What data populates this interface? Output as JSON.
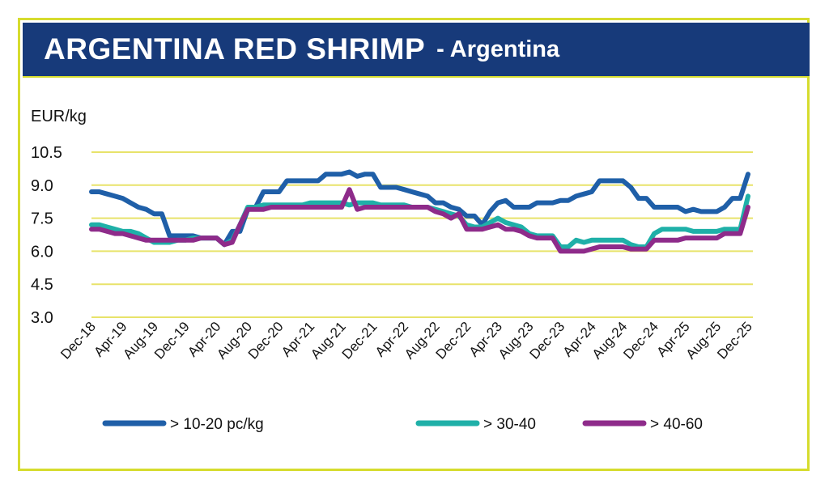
{
  "header": {
    "title": "ARGENTINA RED SHRIMP",
    "subtitle": "- Argentina"
  },
  "chart_data": {
    "type": "line",
    "ylabel": "EUR/kg",
    "ylim": [
      3.0,
      10.5
    ],
    "yticks": [
      "10.5",
      "9.0",
      "7.5",
      "6.0",
      "4.5",
      "3.0"
    ],
    "ytick_values": [
      10.5,
      9.0,
      7.5,
      6.0,
      4.5,
      3.0
    ],
    "grid": true,
    "legend_position": "bottom",
    "x": [
      "Dec-18",
      "Jan-19",
      "Feb-19",
      "Mar-19",
      "Apr-19",
      "May-19",
      "Jun-19",
      "Jul-19",
      "Aug-19",
      "Sep-19",
      "Oct-19",
      "Nov-19",
      "Dec-19",
      "Jan-20",
      "Feb-20",
      "Mar-20",
      "Apr-20",
      "May-20",
      "Jun-20",
      "Jul-20",
      "Aug-20",
      "Sep-20",
      "Oct-20",
      "Nov-20",
      "Dec-20",
      "Jan-21",
      "Feb-21",
      "Mar-21",
      "Apr-21",
      "May-21",
      "Jun-21",
      "Jul-21",
      "Aug-21",
      "Sep-21",
      "Oct-21",
      "Nov-21",
      "Dec-21",
      "Jan-22",
      "Feb-22",
      "Mar-22",
      "Apr-22",
      "May-22",
      "Jun-22",
      "Jul-22",
      "Aug-22",
      "Sep-22",
      "Oct-22",
      "Nov-22",
      "Dec-22",
      "Jan-23",
      "Feb-23",
      "Mar-23",
      "Apr-23",
      "May-23",
      "Jun-23",
      "Jul-23",
      "Aug-23",
      "Sep-23",
      "Oct-23",
      "Nov-23",
      "Dec-23",
      "Jan-24",
      "Feb-24",
      "Mar-24",
      "Apr-24",
      "May-24",
      "Jun-24",
      "Jul-24",
      "Aug-24",
      "Sep-24",
      "Oct-24",
      "Nov-24",
      "Dec-24",
      "Jan-25",
      "Feb-25",
      "Mar-25",
      "Apr-25",
      "May-25",
      "Jun-25",
      "Jul-25",
      "Aug-25",
      "Sep-25",
      "Oct-25",
      "Nov-25",
      "Dec-25"
    ],
    "xticks": [
      "Dec-18",
      "Apr-19",
      "Aug-19",
      "Dec-19",
      "Apr-20",
      "Aug-20",
      "Dec-20",
      "Apr-21",
      "Aug-21",
      "Dec-21",
      "Apr-22",
      "Aug-22",
      "Dec-22",
      "Apr-23",
      "Aug-23",
      "Dec-23",
      "Apr-24",
      "Aug-24",
      "Dec-24",
      "Apr-25",
      "Aug-25",
      "Dec-25"
    ],
    "series": [
      {
        "name": "> 10-20 pc/kg",
        "color": "#1f5fa8",
        "values": [
          8.7,
          8.7,
          8.6,
          8.5,
          8.4,
          8.2,
          8.0,
          7.9,
          7.7,
          7.7,
          6.7,
          6.7,
          6.7,
          6.7,
          6.6,
          6.6,
          6.6,
          6.3,
          6.9,
          6.9,
          7.9,
          8.0,
          8.7,
          8.7,
          8.7,
          9.2,
          9.2,
          9.2,
          9.2,
          9.2,
          9.5,
          9.5,
          9.5,
          9.6,
          9.4,
          9.5,
          9.5,
          8.9,
          8.9,
          8.9,
          8.8,
          8.7,
          8.6,
          8.5,
          8.2,
          8.2,
          8.0,
          7.9,
          7.6,
          7.6,
          7.2,
          7.8,
          8.2,
          8.3,
          8.0,
          8.0,
          8.0,
          8.2,
          8.2,
          8.2,
          8.3,
          8.3,
          8.5,
          8.6,
          8.7,
          9.2,
          9.2,
          9.2,
          9.2,
          8.9,
          8.4,
          8.4,
          8.0,
          8.0,
          8.0,
          8.0,
          7.8,
          7.9,
          7.8,
          7.8,
          7.8,
          8.0,
          8.4,
          8.4,
          9.5
        ]
      },
      {
        "name": "> 30-40",
        "color": "#1fb0a8",
        "values": [
          7.2,
          7.2,
          7.1,
          7.0,
          6.9,
          6.9,
          6.8,
          6.6,
          6.4,
          6.4,
          6.4,
          6.5,
          6.5,
          6.6,
          6.6,
          6.6,
          6.6,
          6.3,
          6.5,
          7.2,
          8.0,
          8.0,
          8.1,
          8.1,
          8.1,
          8.1,
          8.1,
          8.1,
          8.2,
          8.2,
          8.2,
          8.2,
          8.2,
          8.1,
          8.2,
          8.2,
          8.2,
          8.1,
          8.1,
          8.1,
          8.1,
          8.0,
          8.0,
          8.0,
          7.9,
          7.8,
          7.7,
          7.6,
          7.2,
          7.1,
          7.1,
          7.3,
          7.5,
          7.3,
          7.2,
          7.1,
          6.8,
          6.7,
          6.7,
          6.7,
          6.2,
          6.2,
          6.5,
          6.4,
          6.5,
          6.5,
          6.5,
          6.5,
          6.5,
          6.3,
          6.2,
          6.2,
          6.8,
          7.0,
          7.0,
          7.0,
          7.0,
          6.9,
          6.9,
          6.9,
          6.9,
          7.0,
          7.0,
          7.0,
          8.5
        ]
      },
      {
        "name": "> 40-60",
        "color": "#8e2b8a",
        "values": [
          7.0,
          7.0,
          6.9,
          6.8,
          6.8,
          6.7,
          6.6,
          6.5,
          6.5,
          6.5,
          6.5,
          6.5,
          6.5,
          6.5,
          6.6,
          6.6,
          6.6,
          6.3,
          6.4,
          7.2,
          7.9,
          7.9,
          7.9,
          8.0,
          8.0,
          8.0,
          8.0,
          8.0,
          8.0,
          8.0,
          8.0,
          8.0,
          8.0,
          8.8,
          7.9,
          8.0,
          8.0,
          8.0,
          8.0,
          8.0,
          8.0,
          8.0,
          8.0,
          8.0,
          7.8,
          7.7,
          7.5,
          7.7,
          7.0,
          7.0,
          7.0,
          7.1,
          7.2,
          7.0,
          7.0,
          6.9,
          6.7,
          6.6,
          6.6,
          6.6,
          6.0,
          6.0,
          6.0,
          6.0,
          6.1,
          6.2,
          6.2,
          6.2,
          6.2,
          6.1,
          6.1,
          6.1,
          6.5,
          6.5,
          6.5,
          6.5,
          6.6,
          6.6,
          6.6,
          6.6,
          6.6,
          6.8,
          6.8,
          6.8,
          8.0
        ]
      }
    ]
  },
  "colors": {
    "frame": "#d6dc2e",
    "titlebar": "#173a7a",
    "grid": "#e8e36a"
  }
}
